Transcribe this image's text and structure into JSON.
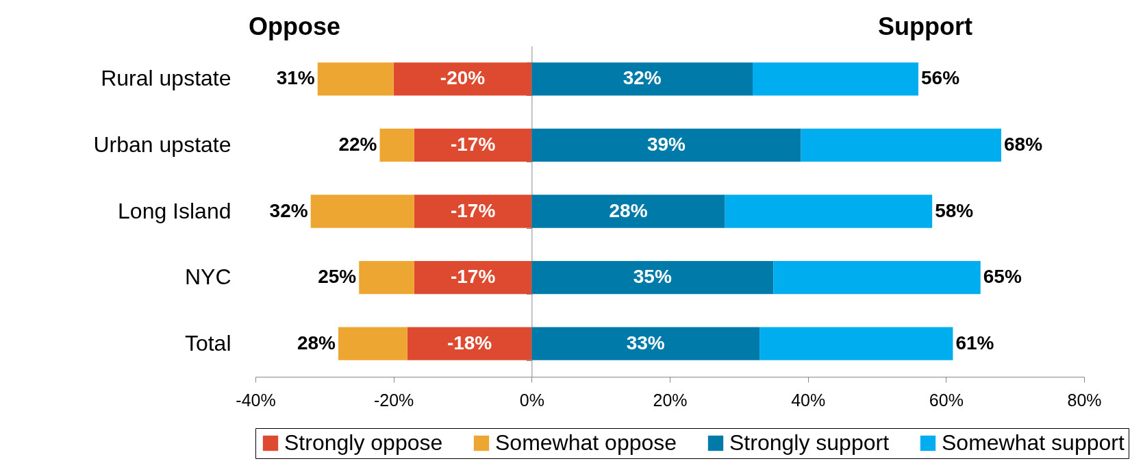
{
  "chart_data": {
    "type": "bar",
    "orientation": "horizontal",
    "stacked": true,
    "categories": [
      "Rural upstate",
      "Urban upstate",
      "Long Island",
      "NYC",
      "Total"
    ],
    "series": [
      {
        "name": "Strongly oppose",
        "color": "#dd4a2f",
        "values": [
          -20,
          -17,
          -17,
          -17,
          -18
        ],
        "value_labels": [
          "-20%",
          "-17%",
          "-17%",
          "-17%",
          "-18%"
        ]
      },
      {
        "name": "Somewhat oppose",
        "color": "#eda631",
        "values": [
          -11,
          -5,
          -15,
          -8,
          -10
        ]
      },
      {
        "name": "Strongly support",
        "color": "#007aa8",
        "values": [
          32,
          39,
          28,
          35,
          33
        ],
        "value_labels": [
          "32%",
          "39%",
          "28%",
          "35%",
          "33%"
        ]
      },
      {
        "name": "Somewhat support",
        "color": "#00adef",
        "values": [
          24,
          29,
          30,
          30,
          28
        ]
      }
    ],
    "totals": [
      [
        "31%",
        "56%"
      ],
      [
        "22%",
        "68%"
      ],
      [
        "32%",
        "58%"
      ],
      [
        "25%",
        "65%"
      ],
      [
        "28%",
        "61%"
      ]
    ],
    "xlim": [
      -40,
      80
    ],
    "xticks": [
      {
        "value": -40,
        "label": "-40%"
      },
      {
        "value": -20,
        "label": "-20%"
      },
      {
        "value": 0,
        "label": "0%"
      },
      {
        "value": 20,
        "label": "20%"
      },
      {
        "value": 40,
        "label": "40%"
      },
      {
        "value": 60,
        "label": "60%"
      },
      {
        "value": 80,
        "label": "80%"
      }
    ],
    "annotations": [
      "Oppose",
      "Support"
    ],
    "legend": "bottom"
  }
}
